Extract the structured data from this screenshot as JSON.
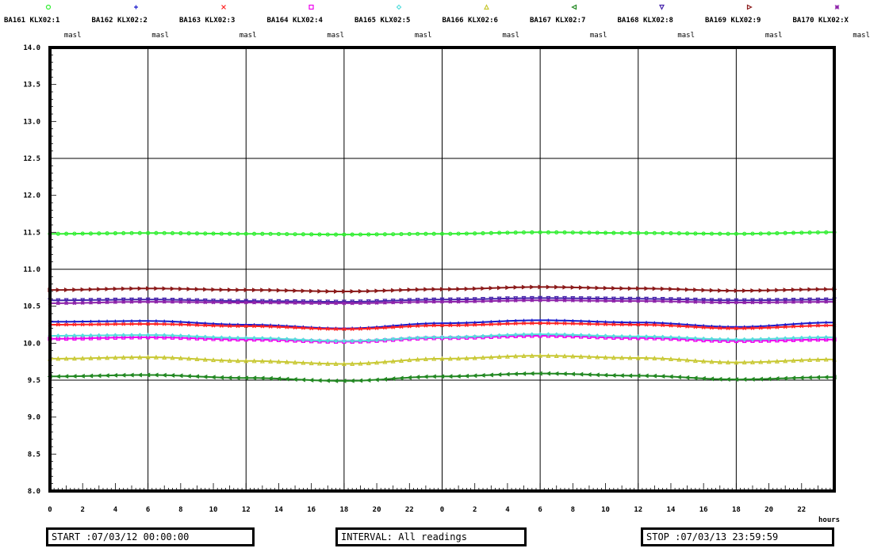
{
  "chart_data": {
    "type": "line",
    "x_unit_label": "hours",
    "x_tick_labels": [
      "0",
      "2",
      "4",
      "6",
      "8",
      "10",
      "12",
      "14",
      "16",
      "18",
      "20",
      "22",
      "0",
      "2",
      "4",
      "6",
      "8",
      "10",
      "12",
      "14",
      "16",
      "18",
      "20",
      "22"
    ],
    "y_tick_labels": [
      "14.0",
      "13.5",
      "13.0",
      "12.5",
      "12.0",
      "11.5",
      "11.0",
      "10.5",
      "10.0",
      "9.5",
      "9.0",
      "8.5",
      "8.0"
    ],
    "xlim": [
      0,
      48
    ],
    "ylim": [
      8.0,
      14.0
    ],
    "grid": true,
    "legend_placement": "top",
    "x": [
      0,
      6,
      12,
      18,
      24,
      30,
      36,
      42,
      48
    ],
    "series": [
      {
        "name": "BA161 KLX02:1",
        "unit": "masl",
        "color": "#33ee33",
        "marker": "circle",
        "values": [
          11.48,
          11.49,
          11.48,
          11.47,
          11.48,
          11.5,
          11.49,
          11.48,
          11.5
        ]
      },
      {
        "name": "BA162 KLX02:2",
        "unit": "masl",
        "color": "#1a1acc",
        "marker": "plus",
        "values": [
          10.29,
          10.3,
          10.25,
          10.2,
          10.27,
          10.31,
          10.28,
          10.22,
          10.28
        ]
      },
      {
        "name": "BA163 KLX02:3",
        "unit": "masl",
        "color": "#ff2222",
        "marker": "cross",
        "values": [
          10.25,
          10.26,
          10.23,
          10.19,
          10.24,
          10.27,
          10.25,
          10.2,
          10.24
        ]
      },
      {
        "name": "BA164 KLX02:4",
        "unit": "masl",
        "color": "#ee00ee",
        "marker": "square",
        "values": [
          10.06,
          10.08,
          10.05,
          10.02,
          10.07,
          10.1,
          10.07,
          10.03,
          10.05
        ]
      },
      {
        "name": "BA165 KLX02:5",
        "unit": "masl",
        "color": "#55dddd",
        "marker": "diamond",
        "values": [
          10.1,
          10.11,
          10.07,
          10.03,
          10.08,
          10.12,
          10.09,
          10.05,
          10.08
        ]
      },
      {
        "name": "BA166 KLX02:6",
        "unit": "masl",
        "color": "#c8c832",
        "marker": "triangle-up",
        "values": [
          9.79,
          9.81,
          9.76,
          9.72,
          9.79,
          9.83,
          9.8,
          9.74,
          9.78
        ]
      },
      {
        "name": "BA167 KLX02:7",
        "unit": "masl",
        "color": "#228822",
        "marker": "triangle-left",
        "values": [
          9.55,
          9.57,
          9.53,
          9.49,
          9.55,
          9.59,
          9.56,
          9.51,
          9.54
        ]
      },
      {
        "name": "BA168 KLX02:8",
        "unit": "masl",
        "color": "#4422aa",
        "marker": "triangle-down",
        "values": [
          10.58,
          10.59,
          10.57,
          10.56,
          10.59,
          10.61,
          10.6,
          10.58,
          10.59
        ]
      },
      {
        "name": "BA169 KLX02:9",
        "unit": "masl",
        "color": "#8b1a1a",
        "marker": "triangle-right",
        "values": [
          10.72,
          10.74,
          10.72,
          10.7,
          10.73,
          10.76,
          10.74,
          10.71,
          10.73
        ]
      },
      {
        "name": "BA170 KLX02:X",
        "unit": "masl",
        "color": "#8e24aa",
        "marker": "star",
        "values": [
          10.54,
          10.56,
          10.55,
          10.54,
          10.56,
          10.58,
          10.57,
          10.55,
          10.56
        ]
      }
    ]
  },
  "footer": {
    "start": "START :07/03/12 00:00:00",
    "interval": "INTERVAL: All readings",
    "stop": "STOP :07/03/13 23:59:59"
  }
}
